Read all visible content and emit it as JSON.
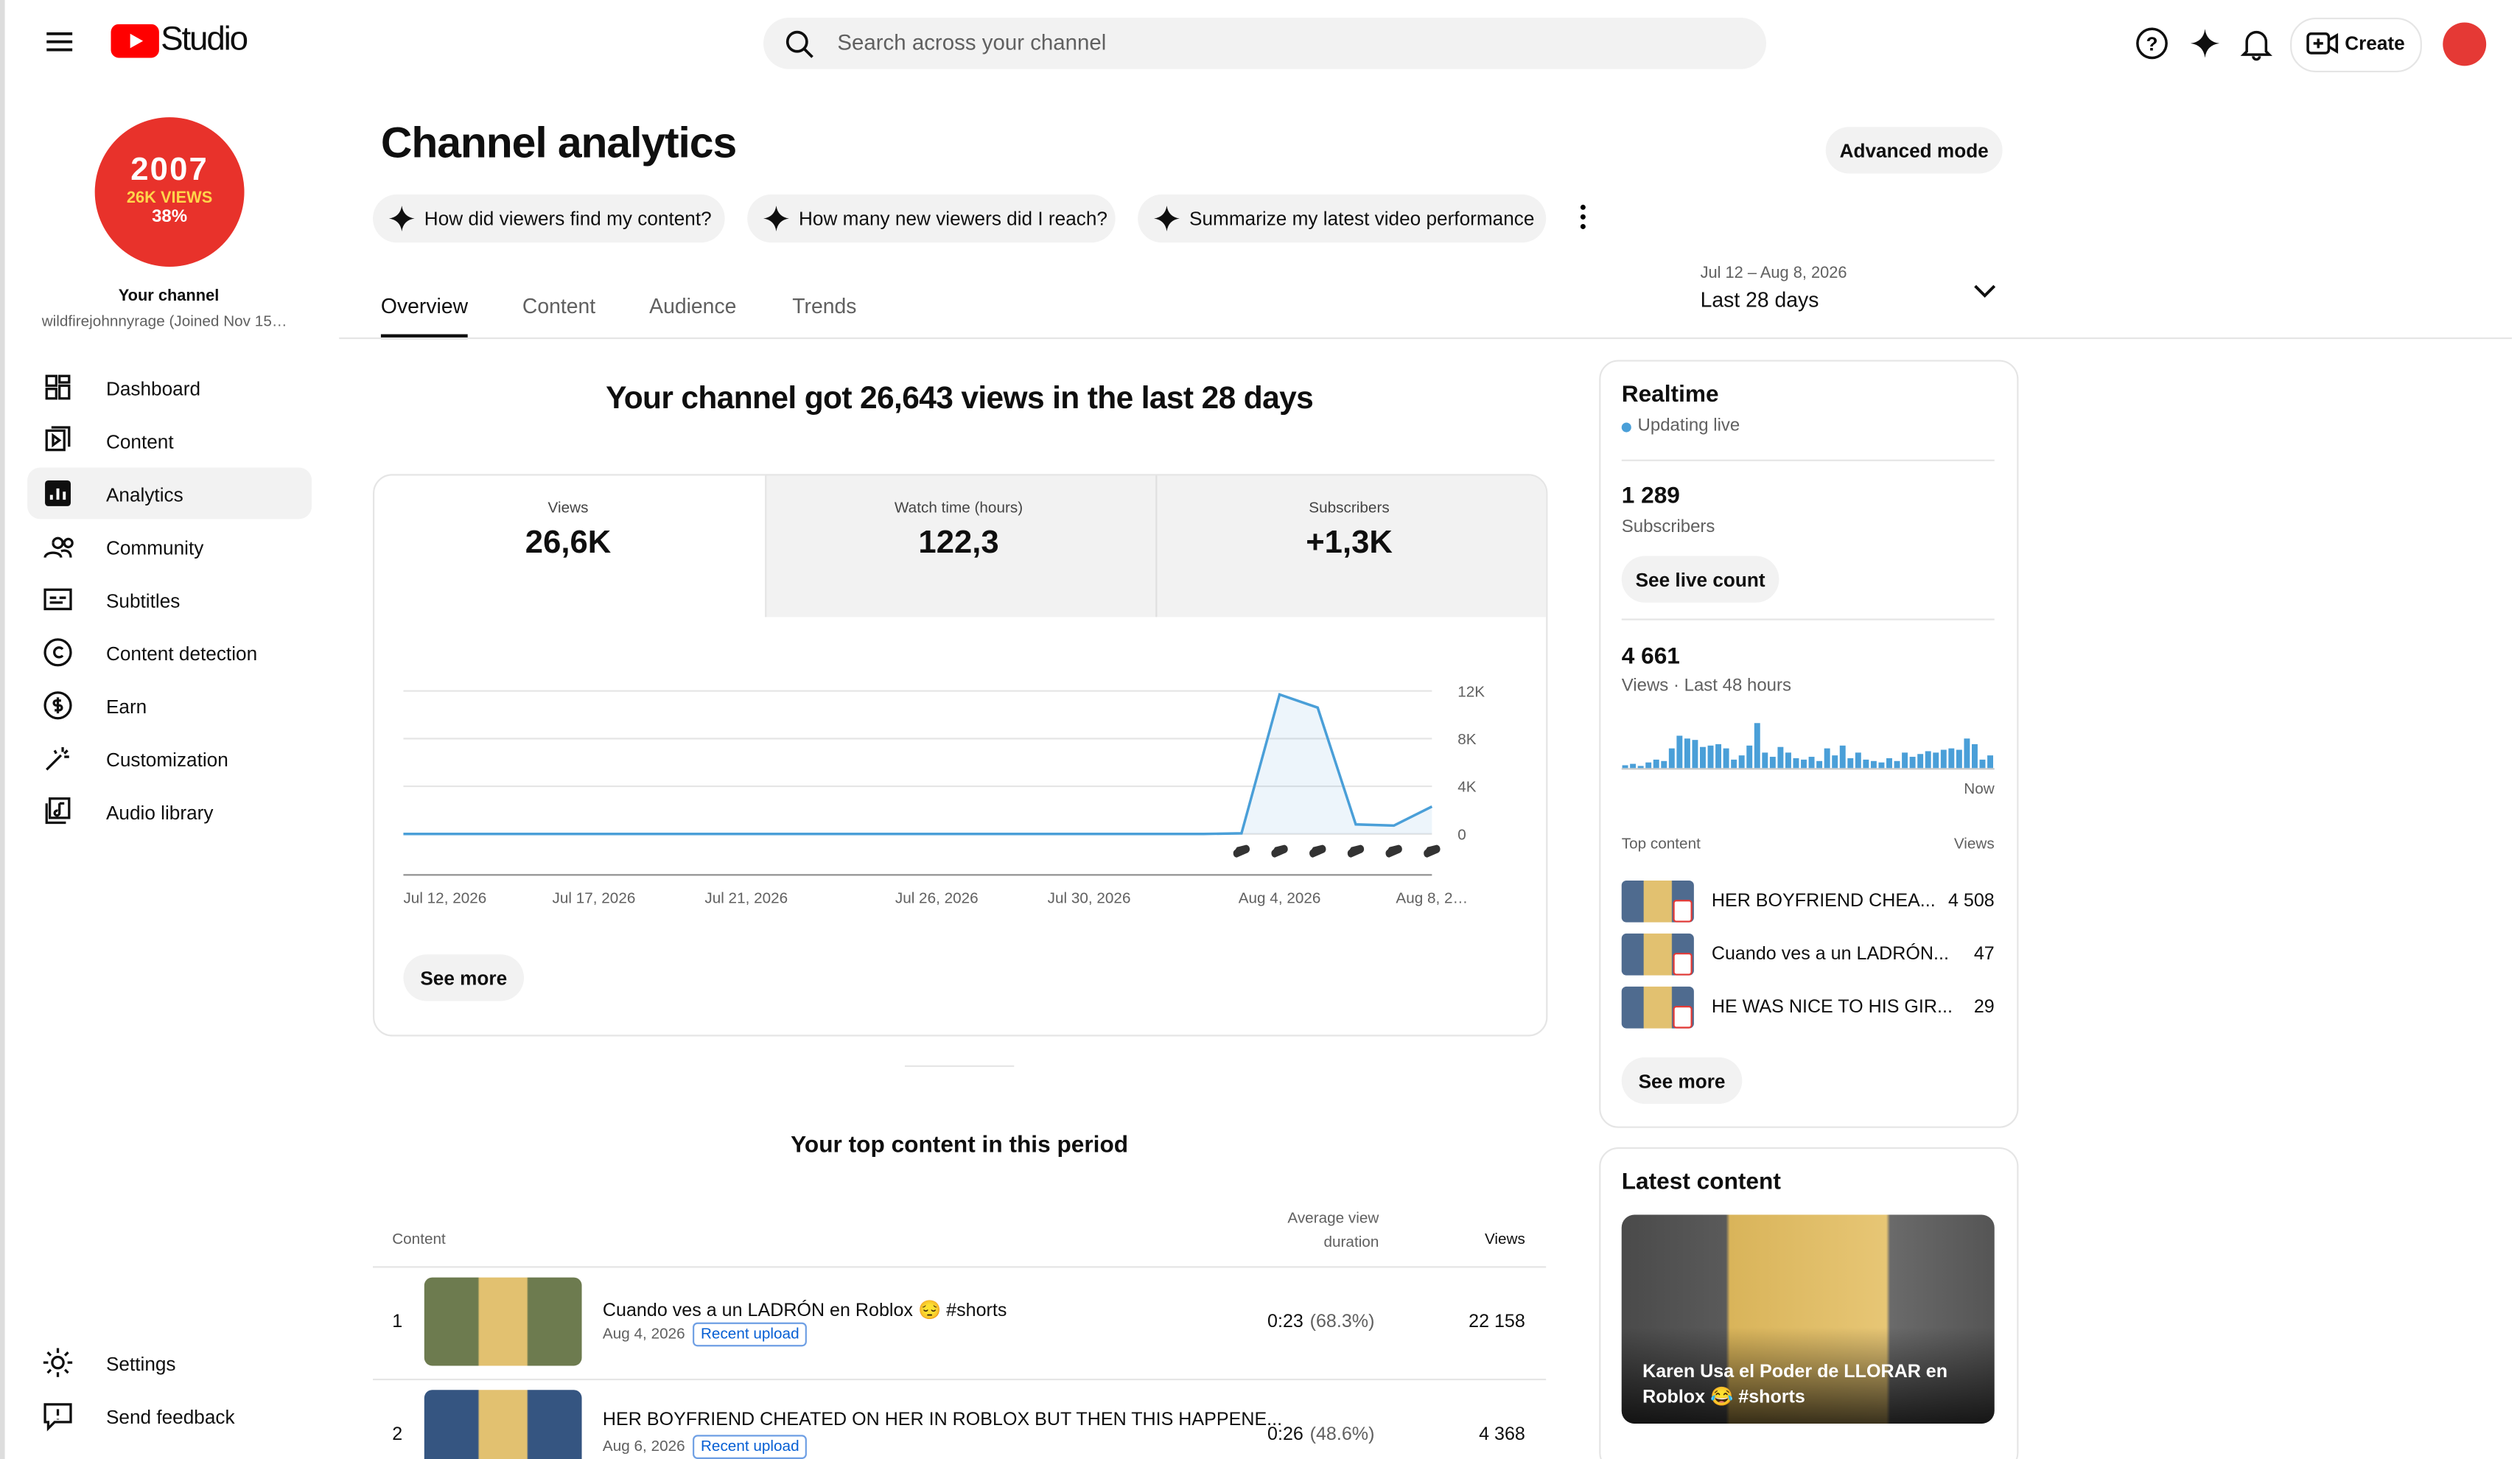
{
  "header": {
    "logo": "Studio",
    "search_placeholder": "Search across your channel",
    "create": "Create"
  },
  "sidebar": {
    "avatar": [
      "2007",
      "26K VIEWS",
      "38%"
    ],
    "channel_label": "Your channel",
    "channel_name": "wildfirejohnnyrage (Joined Nov 15…",
    "nav": [
      "Dashboard",
      "Content",
      "Analytics",
      "Community",
      "Subtitles",
      "Content detection",
      "Earn",
      "Customization",
      "Audio library"
    ],
    "bottom": [
      "Settings",
      "Send feedback"
    ]
  },
  "page": {
    "title": "Channel analytics",
    "advanced": "Advanced mode",
    "suggestions": [
      "How did viewers find my content?",
      "How many new viewers did I reach?",
      "Summarize my latest video performance"
    ],
    "tabs": [
      "Overview",
      "Content",
      "Audience",
      "Trends"
    ],
    "date_range": "Jul 12 – Aug 8, 2026",
    "period": "Last 28 days"
  },
  "summary": {
    "headline": "Your channel got 26,643 views in the last 28 days",
    "metrics": [
      {
        "label": "Views",
        "value": "26,6K"
      },
      {
        "label": "Watch time (hours)",
        "value": "122,3"
      },
      {
        "label": "Subscribers",
        "value": "+1,3K"
      }
    ],
    "see_more": "See more"
  },
  "chart_data": [
    {
      "type": "line",
      "color": "#4a9fd8",
      "categories": [
        "Jul 12, 2026",
        null,
        null,
        null,
        null,
        "Jul 17, 2026",
        null,
        null,
        null,
        "Jul 21, 2026",
        null,
        null,
        null,
        null,
        "Jul 26, 2026",
        null,
        null,
        null,
        "Jul 30, 2026",
        null,
        null,
        null,
        null,
        "Aug 4, 2026",
        null,
        null,
        null,
        "Aug 8, 2…"
      ],
      "values": [
        0,
        0,
        0,
        0,
        0,
        0,
        0,
        0,
        0,
        0,
        0,
        0,
        0,
        0,
        0,
        0,
        0,
        0,
        0,
        0,
        0,
        0,
        50,
        11700,
        10600,
        800,
        700,
        2300
      ],
      "ylim": [
        0,
        12000
      ],
      "yticks": [
        {
          "value": 0,
          "label": "0"
        },
        {
          "value": 4000,
          "label": "4K"
        },
        {
          "value": 8000,
          "label": "8K"
        },
        {
          "value": 12000,
          "label": "12K"
        }
      ],
      "grid": true
    },
    {
      "type": "bar",
      "color": "#4a9fd8",
      "values": [
        20,
        30,
        15,
        40,
        60,
        50,
        140,
        230,
        210,
        200,
        150,
        160,
        170,
        140,
        60,
        90,
        160,
        320,
        110,
        80,
        150,
        110,
        70,
        60,
        80,
        50,
        140,
        90,
        160,
        70,
        110,
        60,
        50,
        40,
        70,
        50,
        110,
        80,
        100,
        120,
        110,
        130,
        140,
        130,
        210,
        170,
        60,
        90
      ]
    }
  ],
  "top_content": {
    "title": "Your top content in this period",
    "headers": [
      "Content",
      "Average view duration",
      "Views"
    ],
    "rows": [
      {
        "rank": "1",
        "title": "Cuando ves a un LADRÓN en Roblox 😔 #shorts",
        "date": "Aug 4, 2026",
        "badge": "Recent upload",
        "duration": "0:23",
        "percent": "(68.3%)",
        "views": "22 158"
      },
      {
        "rank": "2",
        "title": "HER BOYFRIEND CHEATED ON HER IN ROBLOX BUT THEN THIS HAPPENE...",
        "date": "Aug 6, 2026",
        "badge": "Recent upload",
        "duration": "0:26",
        "percent": "(48.6%)",
        "views": "4 368"
      }
    ]
  },
  "realtime": {
    "title": "Realtime",
    "status": "Updating live",
    "subs": "1 289",
    "subs_label": "Subscribers",
    "live_count": "See live count",
    "views": "4 661",
    "views_label": "Views · Last 48 hours",
    "now": "Now",
    "top_label": "Top content",
    "views_col": "Views",
    "items": [
      {
        "title": "HER BOYFRIEND CHEA...",
        "views": "4 508"
      },
      {
        "title": "Cuando ves a un LADRÓN...",
        "views": "47"
      },
      {
        "title": "HE WAS NICE TO HIS GIR...",
        "views": "29"
      }
    ],
    "see_more": "See more"
  },
  "latest": {
    "title": "Latest content",
    "video_title": "Karen Usa el Poder de LLORAR en Roblox 😂 #shorts"
  }
}
